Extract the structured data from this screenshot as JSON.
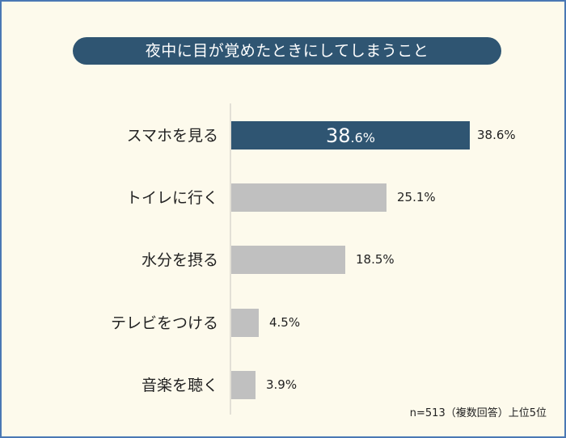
{
  "title": "夜中に目が覚めたときにしてしまうこと",
  "note": "n=513（複数回答）上位5位",
  "colors": {
    "background": "#fdfaec",
    "border": "#4a78b4",
    "highlight_bar": "#2f5572",
    "other_bar": "#c0c0c0",
    "title_pill": "#2f5572"
  },
  "highlight": {
    "big": "38",
    "small": ".6%"
  },
  "bars": [
    {
      "label": "スマホを見る",
      "value": 38.6,
      "value_label": "38.6%"
    },
    {
      "label": "トイレに行く",
      "value": 25.1,
      "value_label": "25.1%"
    },
    {
      "label": "水分を摂る",
      "value": 18.5,
      "value_label": "18.5%"
    },
    {
      "label": "テレビをつける",
      "value": 4.5,
      "value_label": "4.5%"
    },
    {
      "label": "音楽を聴く",
      "value": 3.9,
      "value_label": "3.9%"
    }
  ],
  "chart_data": {
    "type": "bar",
    "orientation": "horizontal",
    "title": "夜中に目が覚めたときにしてしまうこと",
    "categories": [
      "スマホを見る",
      "トイレに行く",
      "水分を摂る",
      "テレビをつける",
      "音楽を聴く"
    ],
    "values": [
      38.6,
      25.1,
      18.5,
      4.5,
      3.9
    ],
    "unit": "%",
    "xlabel": "",
    "ylabel": "",
    "annotations": [
      "n=513（複数回答）上位5位"
    ],
    "highlighted_category": "スマホを見る",
    "grid": false,
    "legend": null
  }
}
